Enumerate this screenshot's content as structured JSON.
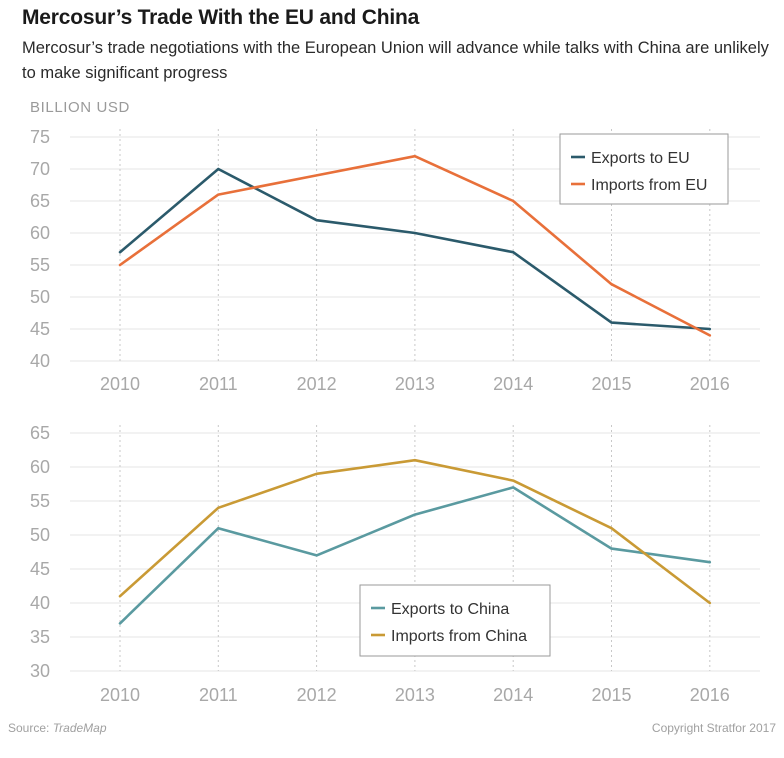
{
  "header": {
    "title": "Mercosur’s Trade With the EU and China",
    "subtitle": "Mercosur’s trade negotiations with the European Union will advance while talks with China are unlikely to make significant progress"
  },
  "footer": {
    "source_label": "Source:",
    "source_name": "TradeMap",
    "copyright": "Copyright Stratfor 2017"
  },
  "chart_data": [
    {
      "type": "line",
      "ylabel": "BILLION USD",
      "x": [
        2010,
        2011,
        2012,
        2013,
        2014,
        2015,
        2016
      ],
      "ylim": [
        40,
        75
      ],
      "yticks": [
        40,
        45,
        50,
        55,
        60,
        65,
        70,
        75
      ],
      "grid": true,
      "legend_position": "top-right",
      "series": [
        {
          "name": "Exports to EU",
          "color": "#2b5a6b",
          "values": [
            57,
            70,
            62,
            60,
            57,
            46,
            45
          ]
        },
        {
          "name": "Imports from EU",
          "color": "#e8703a",
          "values": [
            55,
            66,
            69,
            72,
            65,
            52,
            44
          ]
        }
      ]
    },
    {
      "type": "line",
      "x": [
        2010,
        2011,
        2012,
        2013,
        2014,
        2015,
        2016
      ],
      "ylim": [
        30,
        65
      ],
      "yticks": [
        30,
        35,
        40,
        45,
        50,
        55,
        60,
        65
      ],
      "grid": true,
      "legend_position": "bottom-center",
      "series": [
        {
          "name": "Exports to China",
          "color": "#5a9aa0",
          "values": [
            37,
            51,
            47,
            53,
            57,
            48,
            46
          ]
        },
        {
          "name": "Imports from China",
          "color": "#c99a35",
          "values": [
            41,
            54,
            59,
            61,
            58,
            51,
            40
          ]
        }
      ]
    }
  ]
}
